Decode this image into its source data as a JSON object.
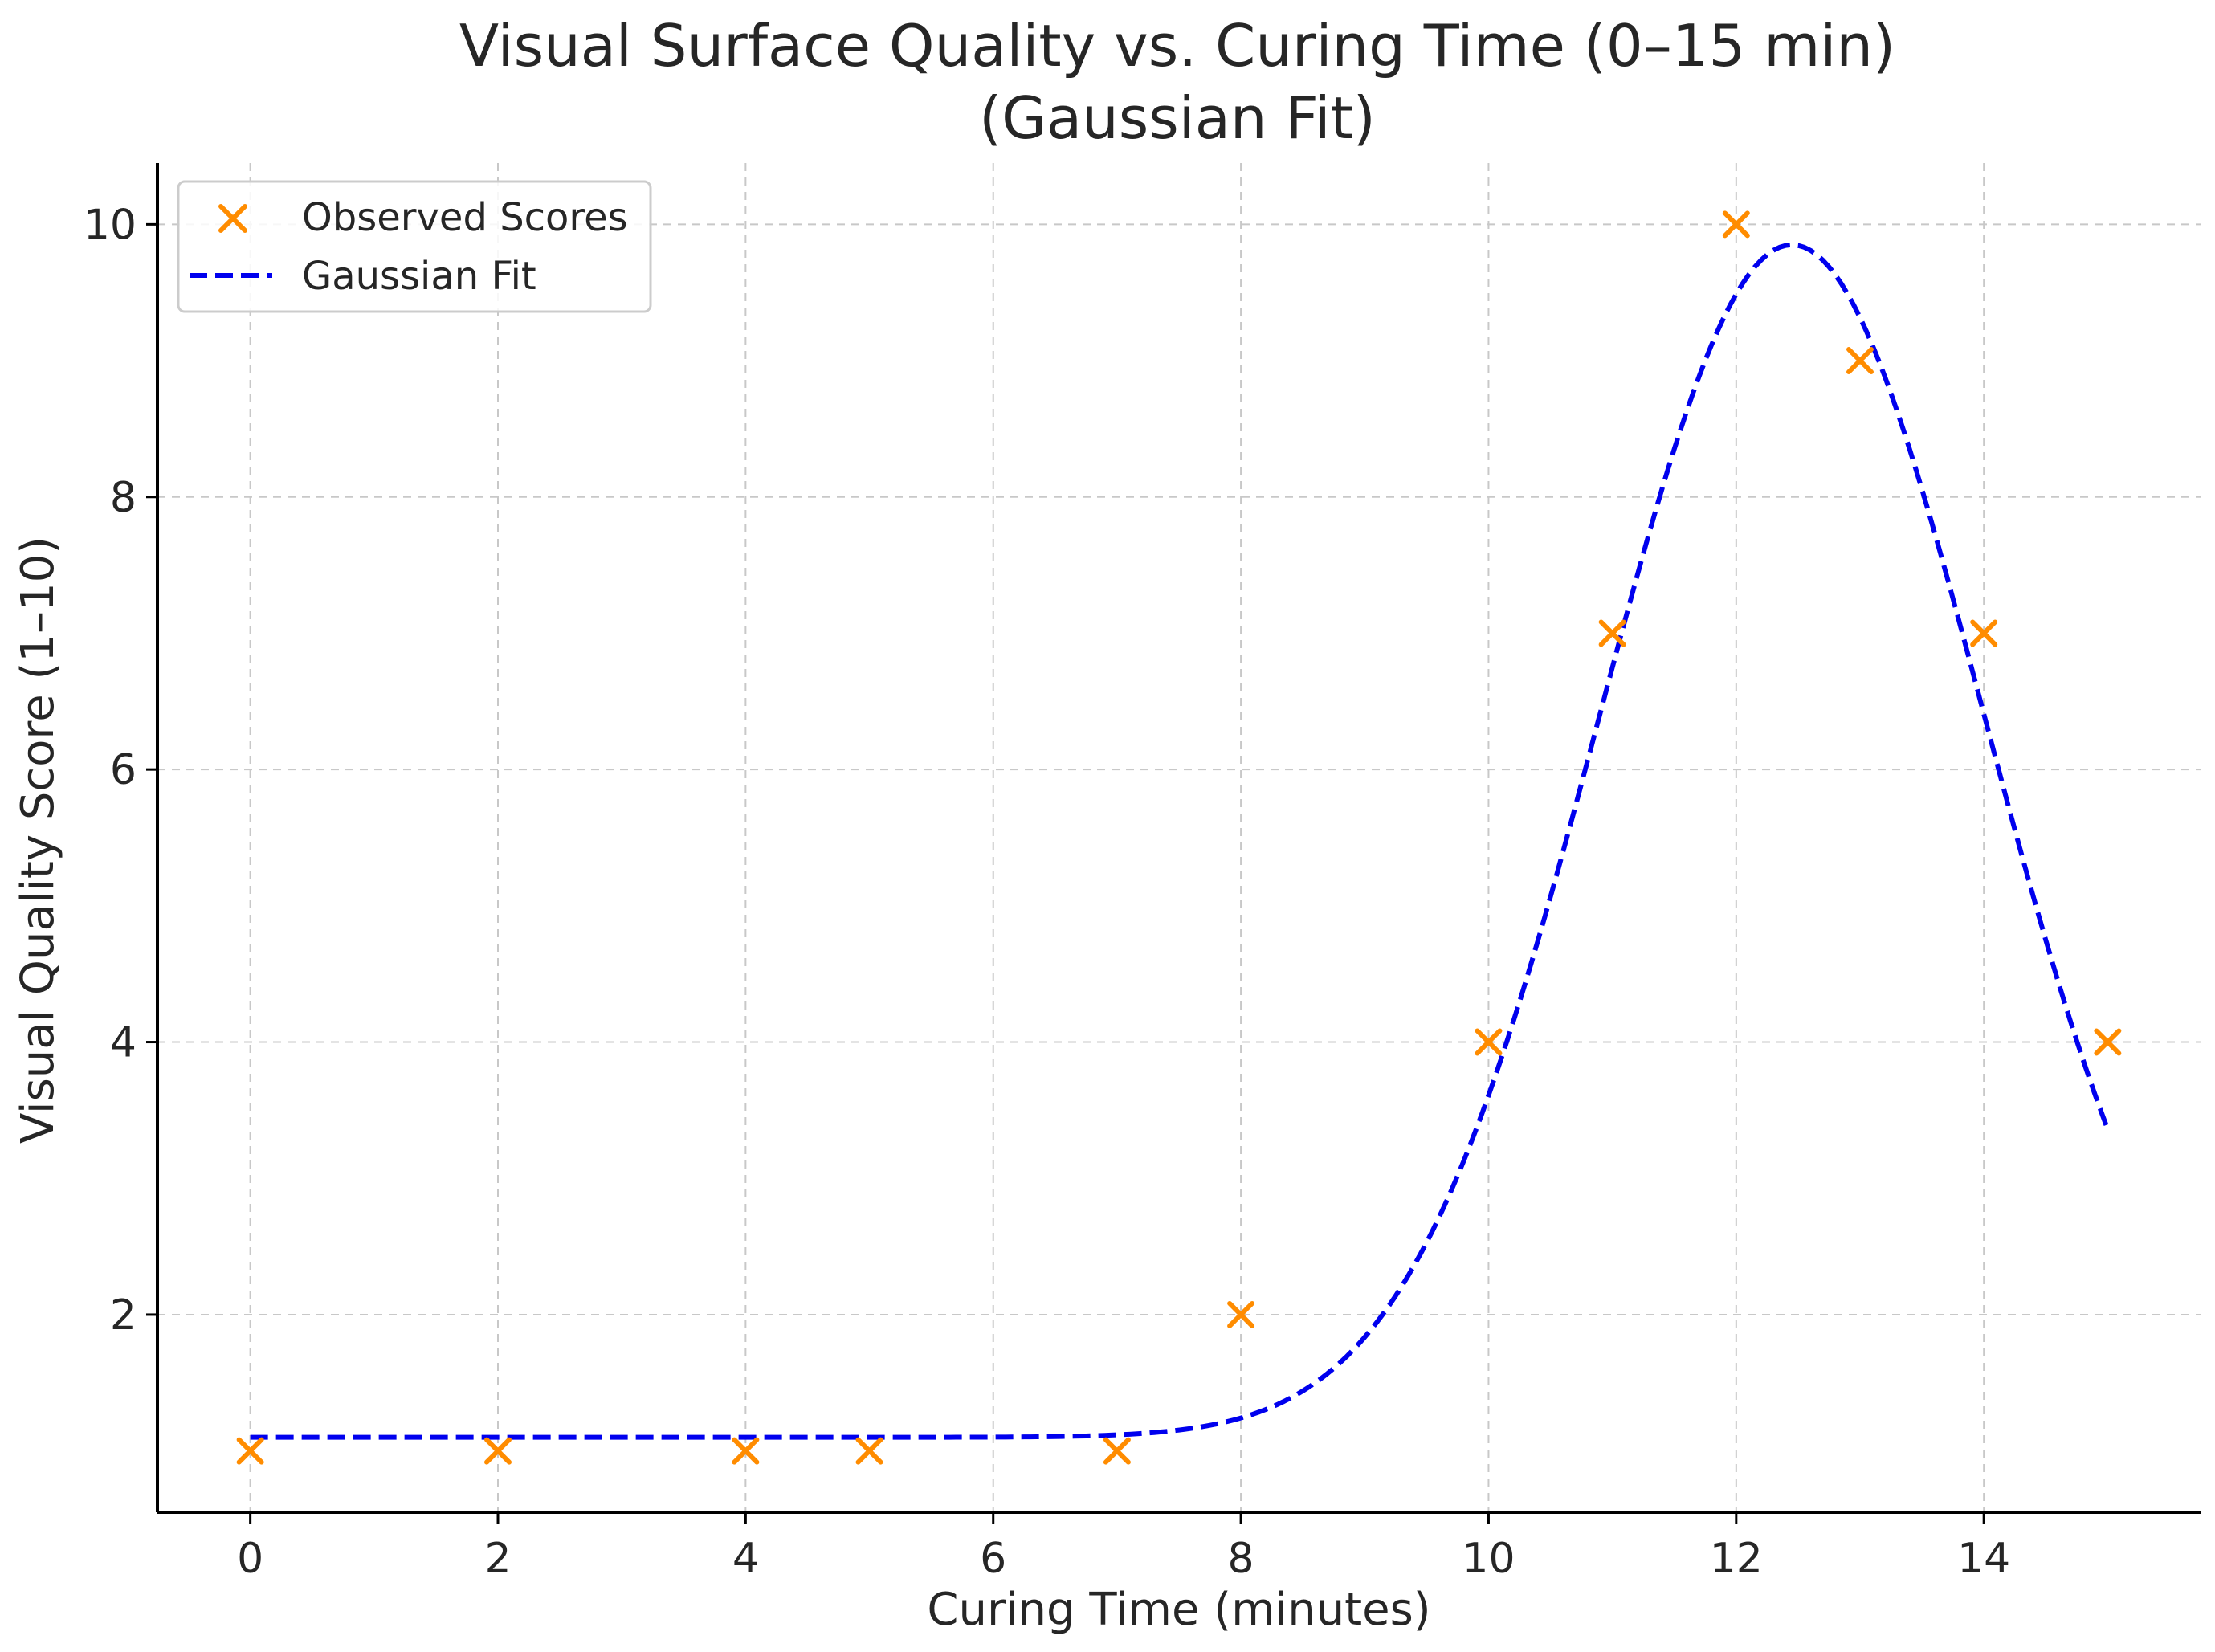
{
  "chart_data": {
    "type": "scatter",
    "title_lines": [
      "Visual Surface Quality vs. Curing Time (0–15 min)",
      "(Gaussian Fit)"
    ],
    "xlabel": "Curing Time (minutes)",
    "ylabel": "Visual Quality Score (1–10)",
    "xlim": [
      -0.75,
      15.75
    ],
    "ylim": [
      0.55,
      10.45
    ],
    "x_ticks": [
      0,
      2,
      4,
      6,
      8,
      10,
      12,
      14
    ],
    "y_ticks": [
      2,
      4,
      6,
      8,
      10
    ],
    "grid": true,
    "legend_position": "top-left",
    "series": [
      {
        "name": "Observed Scores",
        "kind": "scatter",
        "marker": "x",
        "color": "#ff8c00",
        "x": [
          0,
          2,
          4,
          5,
          7,
          8,
          10,
          11,
          12,
          13,
          14,
          15
        ],
        "y": [
          1,
          1,
          1,
          1,
          1,
          2,
          4,
          7,
          10,
          9,
          7,
          4
        ]
      },
      {
        "name": "Gaussian Fit",
        "kind": "line",
        "style": "dashed",
        "color": "#0000ee",
        "model": {
          "function": "baseline + amplitude * exp(-(x - mean)^2 / (2 * sigma^2))",
          "baseline": 1.1,
          "amplitude": 8.75,
          "mean": 12.45,
          "sigma": 1.55,
          "x_range": [
            0,
            15
          ]
        }
      }
    ]
  }
}
